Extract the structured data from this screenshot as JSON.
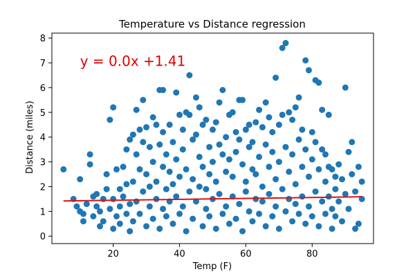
{
  "chart_data": {
    "type": "scatter",
    "title": "Temperature vs Distance regression",
    "xlabel": "Temp (F)",
    "ylabel": "Distance (miles)",
    "xlim": [
      1.5,
      98.5
    ],
    "ylim": [
      -0.3,
      8.2
    ],
    "xticks": [
      20,
      40,
      60,
      80
    ],
    "yticks": [
      0,
      1,
      2,
      3,
      4,
      5,
      6,
      7,
      8
    ],
    "grid": false,
    "marker_color": "#1f77b4",
    "regression": {
      "equation": "y = 0.0x +1.41",
      "color": "#e00000",
      "line_color": "#dd1111",
      "x": [
        5,
        95
      ],
      "y": [
        1.42,
        1.59
      ],
      "label_x": 10,
      "label_y": 7.1
    },
    "points": [
      [
        5,
        2.7
      ],
      [
        8,
        1.5
      ],
      [
        9,
        1.2
      ],
      [
        10,
        2.3
      ],
      [
        10,
        1.0
      ],
      [
        11,
        0.6
      ],
      [
        11,
        0.9
      ],
      [
        12,
        1.3
      ],
      [
        13,
        3.3
      ],
      [
        13,
        2.9
      ],
      [
        14,
        1.6
      ],
      [
        14,
        0.8
      ],
      [
        15,
        1.2
      ],
      [
        15,
        1.7
      ],
      [
        16,
        1.0
      ],
      [
        16,
        0.4
      ],
      [
        17,
        1.5
      ],
      [
        17,
        0.6
      ],
      [
        18,
        2.5
      ],
      [
        18,
        1.9
      ],
      [
        19,
        4.7
      ],
      [
        19,
        1.1
      ],
      [
        20,
        5.2
      ],
      [
        20,
        0.3
      ],
      [
        20,
        1.5
      ],
      [
        21,
        2.7
      ],
      [
        21,
        0.8
      ],
      [
        22,
        1.9
      ],
      [
        22,
        0.5
      ],
      [
        22,
        1.2
      ],
      [
        23,
        2.8
      ],
      [
        23,
        1.6
      ],
      [
        24,
        3.5
      ],
      [
        24,
        0.9
      ],
      [
        24,
        2.1
      ],
      [
        25,
        3.9
      ],
      [
        25,
        0.2
      ],
      [
        25,
        1.3
      ],
      [
        26,
        4.1
      ],
      [
        26,
        2.2
      ],
      [
        26,
        0.6
      ],
      [
        27,
        5.1
      ],
      [
        27,
        3.3
      ],
      [
        27,
        1.4
      ],
      [
        28,
        4.3
      ],
      [
        28,
        2.7
      ],
      [
        28,
        0.9
      ],
      [
        29,
        5.5
      ],
      [
        29,
        3.8
      ],
      [
        29,
        1.8
      ],
      [
        30,
        4.4
      ],
      [
        30,
        2.5
      ],
      [
        30,
        0.4
      ],
      [
        31,
        3.6
      ],
      [
        31,
        1.2
      ],
      [
        31,
        2.0
      ],
      [
        32,
        4.8
      ],
      [
        32,
        3.0
      ],
      [
        32,
        0.7
      ],
      [
        33,
        4.5
      ],
      [
        33,
        2.2
      ],
      [
        33,
        1.5
      ],
      [
        34,
        5.9
      ],
      [
        34,
        3.7
      ],
      [
        34,
        0.3
      ],
      [
        35,
        5.9
      ],
      [
        35,
        4.2
      ],
      [
        35,
        2.8
      ],
      [
        35,
        1.1
      ],
      [
        36,
        3.3
      ],
      [
        36,
        1.9
      ],
      [
        36,
        0.8
      ],
      [
        37,
        4.5
      ],
      [
        37,
        2.6
      ],
      [
        37,
        1.4
      ],
      [
        38,
        3.8
      ],
      [
        38,
        2.1
      ],
      [
        38,
        0.5
      ],
      [
        39,
        5.8
      ],
      [
        39,
        3.1
      ],
      [
        39,
        1.6
      ],
      [
        40,
        4.9
      ],
      [
        40,
        2.4
      ],
      [
        40,
        0.9
      ],
      [
        41,
        4.3
      ],
      [
        41,
        3.5
      ],
      [
        41,
        1.2
      ],
      [
        42,
        5.0
      ],
      [
        42,
        2.7
      ],
      [
        42,
        0.2
      ],
      [
        43,
        6.5
      ],
      [
        43,
        4.9
      ],
      [
        43,
        1.8
      ],
      [
        44,
        3.9
      ],
      [
        44,
        2.3
      ],
      [
        44,
        0.7
      ],
      [
        45,
        5.6
      ],
      [
        45,
        4.1
      ],
      [
        45,
        1.4
      ],
      [
        46,
        5.2
      ],
      [
        46,
        3.2
      ],
      [
        46,
        2.0
      ],
      [
        47,
        4.5
      ],
      [
        47,
        2.8
      ],
      [
        47,
        0.4
      ],
      [
        48,
        4.7
      ],
      [
        48,
        1.9
      ],
      [
        48,
        1.1
      ],
      [
        49,
        3.6
      ],
      [
        49,
        2.5
      ],
      [
        49,
        0.8
      ],
      [
        50,
        4.3
      ],
      [
        50,
        3.0
      ],
      [
        50,
        1.5
      ],
      [
        51,
        4.6
      ],
      [
        51,
        2.2
      ],
      [
        51,
        0.3
      ],
      [
        52,
        5.4
      ],
      [
        52,
        3.7
      ],
      [
        52,
        1.7
      ],
      [
        53,
        5.9
      ],
      [
        53,
        3.3
      ],
      [
        53,
        0.9
      ],
      [
        54,
        4.0
      ],
      [
        54,
        2.6
      ],
      [
        54,
        1.2
      ],
      [
        55,
        4.9
      ],
      [
        55,
        3.1
      ],
      [
        55,
        0.5
      ],
      [
        56,
        5.0
      ],
      [
        56,
        2.4
      ],
      [
        56,
        1.6
      ],
      [
        57,
        4.2
      ],
      [
        57,
        3.4
      ],
      [
        57,
        0.7
      ],
      [
        58,
        5.5
      ],
      [
        58,
        3.9
      ],
      [
        58,
        1.3
      ],
      [
        59,
        5.5
      ],
      [
        59,
        2.9
      ],
      [
        59,
        0.2
      ],
      [
        60,
        4.3
      ],
      [
        60,
        2.2
      ],
      [
        60,
        1.8
      ],
      [
        61,
        4.5
      ],
      [
        61,
        3.6
      ],
      [
        61,
        1.0
      ],
      [
        62,
        3.8
      ],
      [
        62,
        2.7
      ],
      [
        62,
        0.6
      ],
      [
        63,
        4.6
      ],
      [
        63,
        1.5
      ],
      [
        63,
        2.5
      ],
      [
        64,
        5.1
      ],
      [
        64,
        3.2
      ],
      [
        64,
        0.9
      ],
      [
        65,
        4.4
      ],
      [
        65,
        2.0
      ],
      [
        65,
        1.4
      ],
      [
        66,
        5.4
      ],
      [
        66,
        3.7
      ],
      [
        66,
        0.4
      ],
      [
        67,
        4.8
      ],
      [
        67,
        2.8
      ],
      [
        67,
        1.7
      ],
      [
        68,
        4.2
      ],
      [
        68,
        3.4
      ],
      [
        68,
        0.8
      ],
      [
        69,
        6.4
      ],
      [
        69,
        2.3
      ],
      [
        69,
        1.2
      ],
      [
        70,
        4.5
      ],
      [
        70,
        3.0
      ],
      [
        70,
        0.3
      ],
      [
        71,
        7.6
      ],
      [
        71,
        4.9
      ],
      [
        71,
        1.9
      ],
      [
        72,
        7.8
      ],
      [
        72,
        3.6
      ],
      [
        72,
        1.0
      ],
      [
        73,
        5.0
      ],
      [
        73,
        2.6
      ],
      [
        73,
        1.5
      ],
      [
        74,
        4.7
      ],
      [
        74,
        3.3
      ],
      [
        74,
        0.6
      ],
      [
        75,
        5.2
      ],
      [
        75,
        2.1
      ],
      [
        75,
        1.3
      ],
      [
        76,
        5.6
      ],
      [
        76,
        3.9
      ],
      [
        76,
        0.9
      ],
      [
        77,
        4.3
      ],
      [
        77,
        2.8
      ],
      [
        77,
        1.6
      ],
      [
        78,
        7.1
      ],
      [
        78,
        3.5
      ],
      [
        78,
        0.5
      ],
      [
        79,
        6.7
      ],
      [
        79,
        2.4
      ],
      [
        79,
        1.2
      ],
      [
        80,
        4.2
      ],
      [
        80,
        3.1
      ],
      [
        80,
        0.8
      ],
      [
        81,
        6.3
      ],
      [
        81,
        3.8
      ],
      [
        81,
        1.8
      ],
      [
        82,
        6.2
      ],
      [
        82,
        2.7
      ],
      [
        82,
        0.4
      ],
      [
        83,
        5.1
      ],
      [
        83,
        3.5
      ],
      [
        83,
        1.4
      ],
      [
        84,
        3.3
      ],
      [
        84,
        2.2
      ],
      [
        84,
        0.9
      ],
      [
        85,
        4.9
      ],
      [
        85,
        2.8
      ],
      [
        85,
        1.6
      ],
      [
        86,
        2.7
      ],
      [
        86,
        1.1
      ],
      [
        86,
        0.3
      ],
      [
        87,
        2.4
      ],
      [
        87,
        1.9
      ],
      [
        87,
        0.8
      ],
      [
        88,
        2.9
      ],
      [
        88,
        1.4
      ],
      [
        89,
        2.3
      ],
      [
        89,
        0.6
      ],
      [
        90,
        6.0
      ],
      [
        90,
        1.7
      ],
      [
        91,
        3.4
      ],
      [
        91,
        1.1
      ],
      [
        92,
        3.8
      ],
      [
        92,
        2.5
      ],
      [
        93,
        0.3
      ],
      [
        93,
        1.8
      ],
      [
        94,
        2.8
      ],
      [
        94,
        0.5
      ],
      [
        95,
        2.2
      ],
      [
        95,
        1.5
      ]
    ]
  }
}
